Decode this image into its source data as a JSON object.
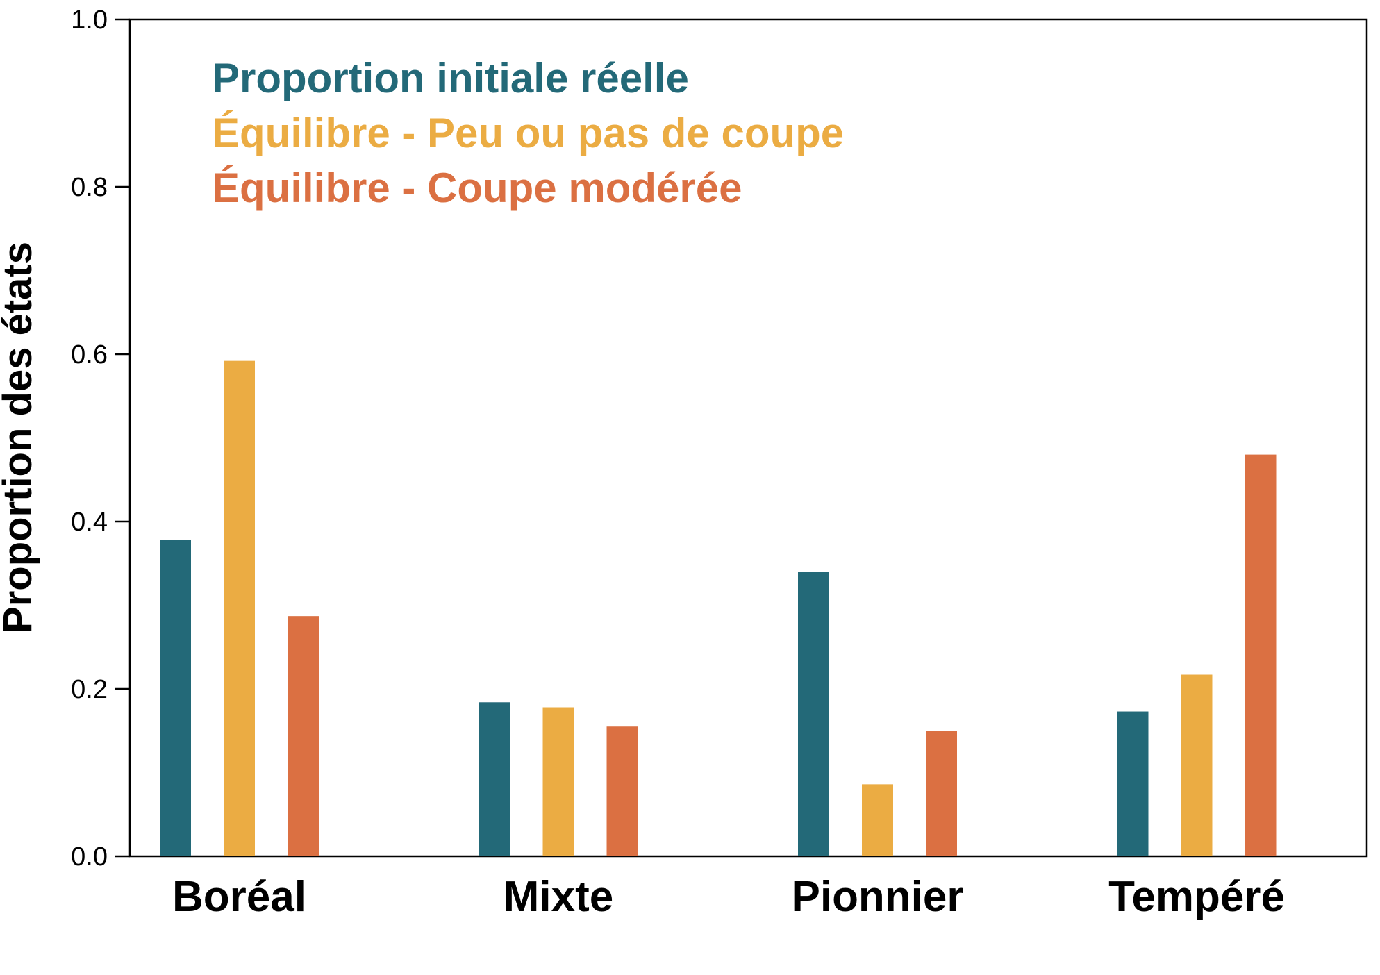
{
  "chart_data": {
    "type": "bar",
    "title": "",
    "xlabel": "",
    "ylabel": "Proportion des états",
    "ylim": [
      0,
      1.0
    ],
    "yticks": [
      "0.0",
      "0.2",
      "0.4",
      "0.6",
      "0.8",
      "1.0"
    ],
    "categories": [
      "Boréal",
      "Mixte",
      "Pionnier",
      "Tempéré"
    ],
    "series": [
      {
        "name": "Proportion initiale réelle",
        "color": "#236978",
        "values": [
          0.378,
          0.184,
          0.34,
          0.173
        ]
      },
      {
        "name": "Équilibre - Peu ou pas de coupe",
        "color": "#ebac43",
        "values": [
          0.592,
          0.178,
          0.086,
          0.217
        ]
      },
      {
        "name": "Équilibre - Coupe modérée",
        "color": "#db7042",
        "values": [
          0.287,
          0.155,
          0.15,
          0.48
        ]
      }
    ],
    "legend_position": "top-left",
    "grid": false
  }
}
